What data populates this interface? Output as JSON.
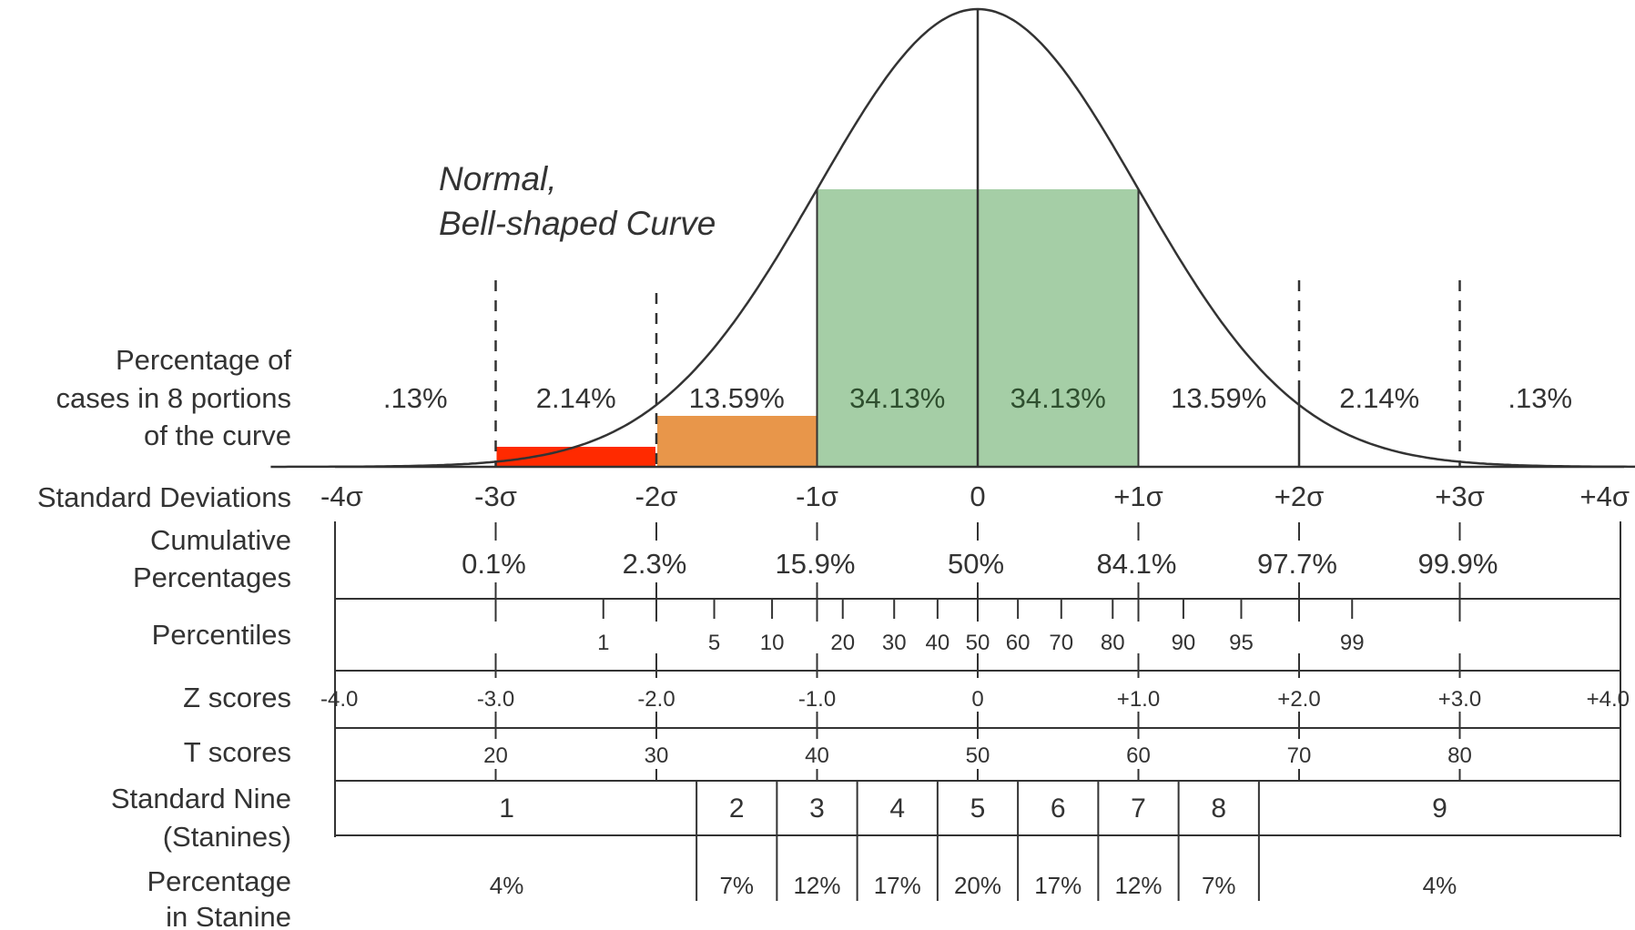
{
  "diagram": {
    "title": [
      "Normal,",
      "Bell-shaped Curve"
    ],
    "colors": {
      "line": "#333333",
      "red": "#ff2a00",
      "orange": "#e8964a",
      "green": "#a5cea6",
      "green_text": "#2f4f2f"
    },
    "row_labels": {
      "portions": [
        "Percentage of",
        "cases in 8 portions",
        "of the curve"
      ],
      "sd": "Standard Deviations",
      "cumulative": [
        "Cumulative",
        "Percentages"
      ],
      "percentiles": "Percentiles",
      "z": "Z scores",
      "t": "T scores",
      "stanine": [
        "Standard Nine",
        "(Stanines)"
      ],
      "stanine_pct": [
        "Percentage",
        "in Stanine"
      ]
    },
    "portions": [
      ".13%",
      "2.14%",
      "13.59%",
      "34.13%",
      "34.13%",
      "13.59%",
      "2.14%",
      ".13%"
    ],
    "sd_values": [
      -4,
      -3,
      -2,
      -1,
      0,
      1,
      2,
      3,
      4
    ],
    "sd_labels": [
      "-4σ",
      "-3σ",
      "-2σ",
      "-1σ",
      "0",
      "+1σ",
      "+2σ",
      "+3σ",
      "+4σ"
    ],
    "cumulative": [
      {
        "z": -3,
        "label": "0.1%"
      },
      {
        "z": -2,
        "label": "2.3%"
      },
      {
        "z": -1,
        "label": "15.9%"
      },
      {
        "z": 0,
        "label": "50%"
      },
      {
        "z": 1,
        "label": "84.1%"
      },
      {
        "z": 2,
        "label": "97.7%"
      },
      {
        "z": 3,
        "label": "99.9%"
      }
    ],
    "percentiles": [
      {
        "z": -2.33,
        "label": "1"
      },
      {
        "z": -1.64,
        "label": "5"
      },
      {
        "z": -1.28,
        "label": "10"
      },
      {
        "z": -0.84,
        "label": "20"
      },
      {
        "z": -0.52,
        "label": "30"
      },
      {
        "z": -0.25,
        "label": "40"
      },
      {
        "z": 0,
        "label": "50"
      },
      {
        "z": 0.25,
        "label": "60"
      },
      {
        "z": 0.52,
        "label": "70"
      },
      {
        "z": 0.84,
        "label": "80"
      },
      {
        "z": 1.28,
        "label": "90"
      },
      {
        "z": 1.64,
        "label": "95"
      },
      {
        "z": 2.33,
        "label": "99"
      }
    ],
    "z_scores": [
      "-4.0",
      "-3.0",
      "-2.0",
      "-1.0",
      "0",
      "+1.0",
      "+2.0",
      "+3.0",
      "+4.0"
    ],
    "t_scores": [
      {
        "z": -3,
        "label": "20"
      },
      {
        "z": -2,
        "label": "30"
      },
      {
        "z": -1,
        "label": "40"
      },
      {
        "z": 0,
        "label": "50"
      },
      {
        "z": 1,
        "label": "60"
      },
      {
        "z": 2,
        "label": "70"
      },
      {
        "z": 3,
        "label": "80"
      }
    ],
    "stanines": [
      {
        "label": "1",
        "from": -4,
        "to": -1.75,
        "pct": "4%"
      },
      {
        "label": "2",
        "from": -1.75,
        "to": -1.25,
        "pct": "7%"
      },
      {
        "label": "3",
        "from": -1.25,
        "to": -0.75,
        "pct": "12%"
      },
      {
        "label": "4",
        "from": -0.75,
        "to": -0.25,
        "pct": "17%"
      },
      {
        "label": "5",
        "from": -0.25,
        "to": 0.25,
        "pct": "20%"
      },
      {
        "label": "6",
        "from": 0.25,
        "to": 0.75,
        "pct": "17%"
      },
      {
        "label": "7",
        "from": 0.75,
        "to": 1.25,
        "pct": "12%"
      },
      {
        "label": "8",
        "from": 1.25,
        "to": 1.75,
        "pct": "7%"
      },
      {
        "label": "9",
        "from": 1.75,
        "to": 4,
        "pct": "4%"
      }
    ]
  }
}
